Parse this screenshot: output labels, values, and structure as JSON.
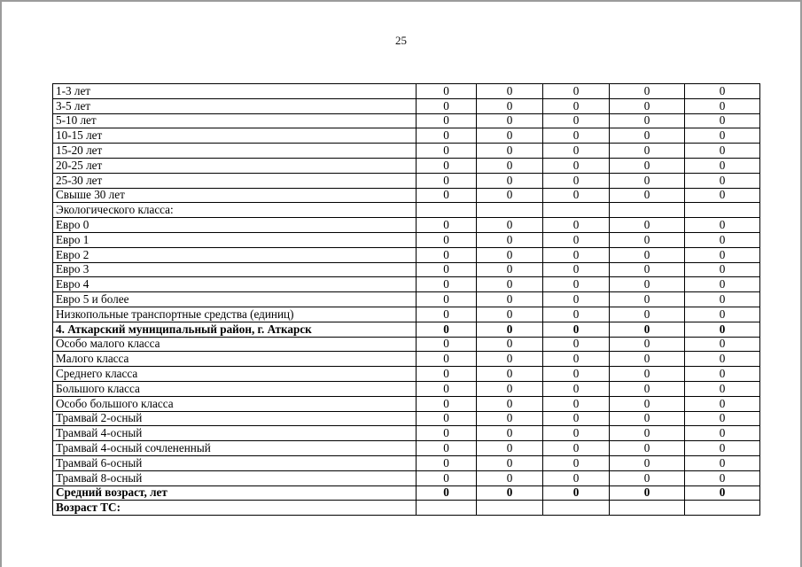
{
  "page": {
    "number": "25"
  },
  "colors": {
    "table_border": "#000000",
    "page_edge": "#9c9c9c",
    "text": "#000000",
    "background": "#ffffff"
  },
  "table": {
    "data_columns_count": 5,
    "rows": [
      {
        "label": "1-3 лет",
        "bold": false,
        "values": [
          "0",
          "0",
          "0",
          "0",
          "0"
        ]
      },
      {
        "label": "3-5 лет",
        "bold": false,
        "values": [
          "0",
          "0",
          "0",
          "0",
          "0"
        ]
      },
      {
        "label": "5-10 лет",
        "bold": false,
        "values": [
          "0",
          "0",
          "0",
          "0",
          "0"
        ]
      },
      {
        "label": "10-15 лет",
        "bold": false,
        "values": [
          "0",
          "0",
          "0",
          "0",
          "0"
        ]
      },
      {
        "label": "15-20 лет",
        "bold": false,
        "values": [
          "0",
          "0",
          "0",
          "0",
          "0"
        ]
      },
      {
        "label": "20-25 лет",
        "bold": false,
        "values": [
          "0",
          "0",
          "0",
          "0",
          "0"
        ]
      },
      {
        "label": "25-30 лет",
        "bold": false,
        "values": [
          "0",
          "0",
          "0",
          "0",
          "0"
        ]
      },
      {
        "label": "Свыше 30 лет",
        "bold": false,
        "values": [
          "0",
          "0",
          "0",
          "0",
          "0"
        ]
      },
      {
        "label": "Экологического класса:",
        "bold": false,
        "values": [
          "",
          "",
          "",
          "",
          ""
        ]
      },
      {
        "label": "Евро 0",
        "bold": false,
        "values": [
          "0",
          "0",
          "0",
          "0",
          "0"
        ]
      },
      {
        "label": "Евро 1",
        "bold": false,
        "values": [
          "0",
          "0",
          "0",
          "0",
          "0"
        ]
      },
      {
        "label": "Евро 2",
        "bold": false,
        "values": [
          "0",
          "0",
          "0",
          "0",
          "0"
        ]
      },
      {
        "label": "Евро 3",
        "bold": false,
        "values": [
          "0",
          "0",
          "0",
          "0",
          "0"
        ]
      },
      {
        "label": "Евро 4",
        "bold": false,
        "values": [
          "0",
          "0",
          "0",
          "0",
          "0"
        ]
      },
      {
        "label": "Евро 5 и более",
        "bold": false,
        "values": [
          "0",
          "0",
          "0",
          "0",
          "0"
        ]
      },
      {
        "label": "Низкопольные транспортные средства (единиц)",
        "bold": false,
        "values": [
          "0",
          "0",
          "0",
          "0",
          "0"
        ]
      },
      {
        "label": "4. Аткарский муниципальный район, г. Аткарск",
        "bold": true,
        "values": [
          "0",
          "0",
          "0",
          "0",
          "0"
        ]
      },
      {
        "label": "Особо малого класса",
        "bold": false,
        "values": [
          "0",
          "0",
          "0",
          "0",
          "0"
        ]
      },
      {
        "label": "Малого класса",
        "bold": false,
        "values": [
          "0",
          "0",
          "0",
          "0",
          "0"
        ]
      },
      {
        "label": "Среднего класса",
        "bold": false,
        "values": [
          "0",
          "0",
          "0",
          "0",
          "0"
        ]
      },
      {
        "label": "Большого класса",
        "bold": false,
        "values": [
          "0",
          "0",
          "0",
          "0",
          "0"
        ]
      },
      {
        "label": "Особо большого класса",
        "bold": false,
        "values": [
          "0",
          "0",
          "0",
          "0",
          "0"
        ]
      },
      {
        "label": "Трамвай 2-осный",
        "bold": false,
        "values": [
          "0",
          "0",
          "0",
          "0",
          "0"
        ]
      },
      {
        "label": "Трамвай 4-осный",
        "bold": false,
        "values": [
          "0",
          "0",
          "0",
          "0",
          "0"
        ]
      },
      {
        "label": "Трамвай 4-осный сочлененный",
        "bold": false,
        "values": [
          "0",
          "0",
          "0",
          "0",
          "0"
        ]
      },
      {
        "label": "Трамвай 6-осный",
        "bold": false,
        "values": [
          "0",
          "0",
          "0",
          "0",
          "0"
        ]
      },
      {
        "label": "Трамвай 8-осный",
        "bold": false,
        "values": [
          "0",
          "0",
          "0",
          "0",
          "0"
        ]
      },
      {
        "label": "Средний возраст, лет",
        "bold": true,
        "values": [
          "0",
          "0",
          "0",
          "0",
          "0"
        ]
      },
      {
        "label": "Возраст ТС:",
        "bold": true,
        "values": [
          "",
          "",
          "",
          "",
          ""
        ]
      }
    ]
  }
}
